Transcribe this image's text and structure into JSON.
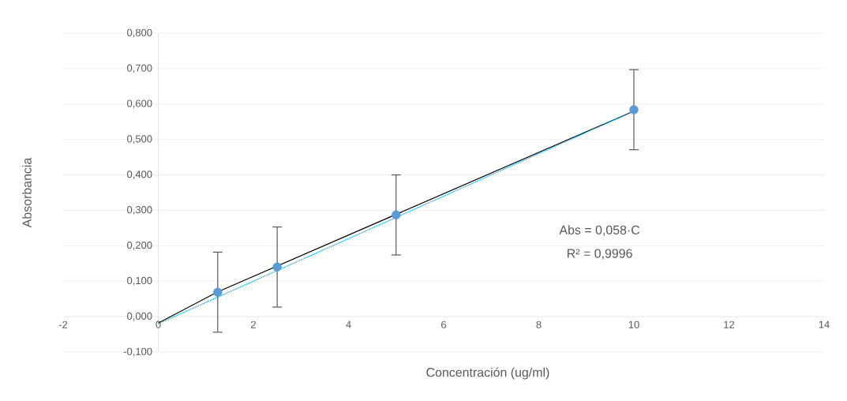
{
  "chart_data": {
    "type": "scatter",
    "xlabel": "Concentración (ug/ml)",
    "ylabel": "Absorbancia",
    "annotations": [
      "Abs = 0,058·C",
      "R² = 0,9996"
    ],
    "xlim": [
      -2,
      14
    ],
    "xticks": [
      -2,
      0,
      2,
      4,
      6,
      8,
      10,
      12,
      14
    ],
    "ylim": [
      -0.1,
      0.8
    ],
    "yticks": [
      {
        "value": -0.1,
        "label": "-0,100"
      },
      {
        "value": 0,
        "label": "0,000"
      },
      {
        "value": 0.1,
        "label": "0,100"
      },
      {
        "value": 0.2,
        "label": "0,200"
      },
      {
        "value": 0.3,
        "label": "0,300"
      },
      {
        "value": 0.4,
        "label": "0,400"
      },
      {
        "value": 0.5,
        "label": "0,500"
      },
      {
        "value": 0.6,
        "label": "0,600"
      },
      {
        "value": 0.7,
        "label": "0,700"
      },
      {
        "value": 0.8,
        "label": "0,800"
      }
    ],
    "grid": "y",
    "series": [
      {
        "color": "#5b9bd5",
        "marker": "circle",
        "x": [
          1.25,
          2.5,
          5,
          10
        ],
        "values": [
          0.069,
          0.14,
          0.287,
          0.584
        ],
        "errors": [
          0.113,
          0.113,
          0.113,
          0.113
        ]
      },
      {
        "type": "line",
        "color": "#000000",
        "marker": "none",
        "x": [
          0,
          1.25,
          10
        ],
        "values": [
          -0.018,
          0.07,
          0.58
        ]
      },
      {
        "type": "line",
        "color": "#00b0f0",
        "marker": "none",
        "line_style": "dotted",
        "x": [
          0,
          10
        ],
        "values": [
          -0.02,
          0.58
        ]
      }
    ]
  }
}
